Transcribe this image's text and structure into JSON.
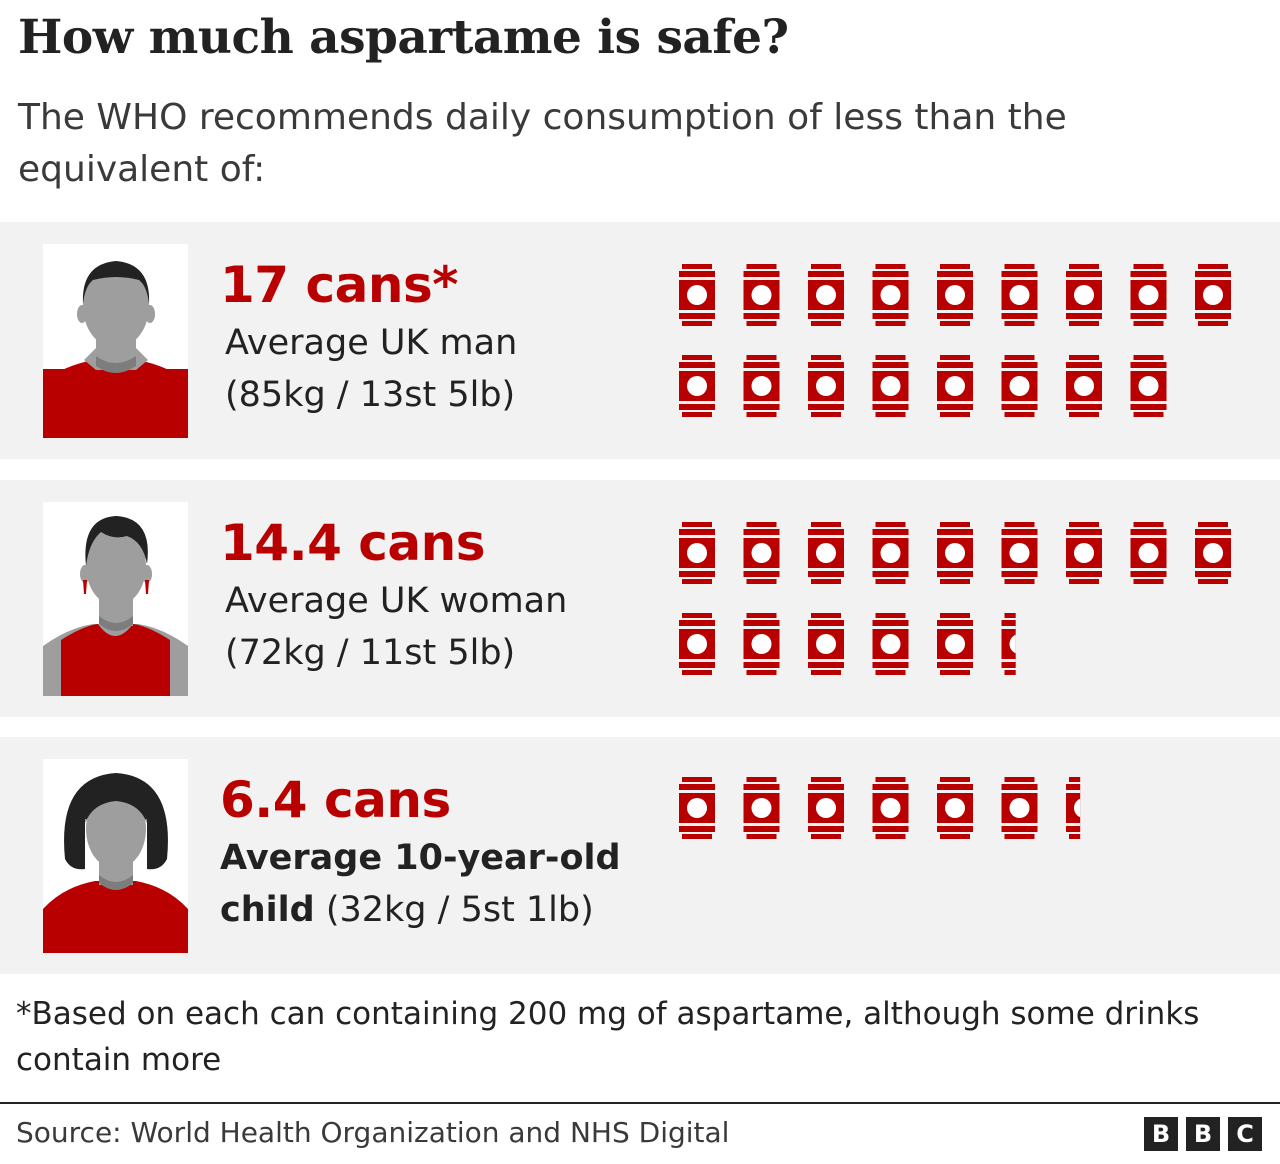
{
  "title": "How much aspartame is safe?",
  "subtitle": "The WHO recommends daily consumption of less than the equivalent of:",
  "colors": {
    "accent": "#b80000",
    "panel_background": "#f2f2f2",
    "figure_grey": "#9e9e9e",
    "hair": "#222222"
  },
  "chart_data": {
    "type": "pictogram",
    "title": "How much aspartame is safe?",
    "subtitle": "The WHO recommends daily consumption of less than the equivalent of:",
    "unit": "cans",
    "categories": [
      "Average UK man",
      "Average UK woman",
      "Average 10-year-old child"
    ],
    "values": [
      17,
      14.4,
      6.4
    ],
    "rows": [
      {
        "value": 17,
        "value_label": "17 cans*",
        "label_line1": "Average UK man",
        "label_line2": "(85kg / 13st 5lb)",
        "figure": "man-avatar-icon"
      },
      {
        "value": 14.4,
        "value_label": "14.4 cans",
        "label_line1": "Average UK woman",
        "label_line2": "(72kg / 11st 5lb)",
        "figure": "woman-avatar-icon"
      },
      {
        "value": 6.4,
        "value_label": "6.4 cans",
        "label_line1": "Average 10-year-old",
        "label_line2_bold": "child",
        "label_line2": " (32kg / 5st 1lb)",
        "figure": "child-avatar-icon"
      }
    ],
    "icon": "drink-can-icon"
  },
  "footnote": "*Based on each can containing 200 mg of aspartame, although some drinks contain more",
  "source": "Source: World Health Organization and NHS Digital",
  "logo": [
    "B",
    "B",
    "C"
  ]
}
